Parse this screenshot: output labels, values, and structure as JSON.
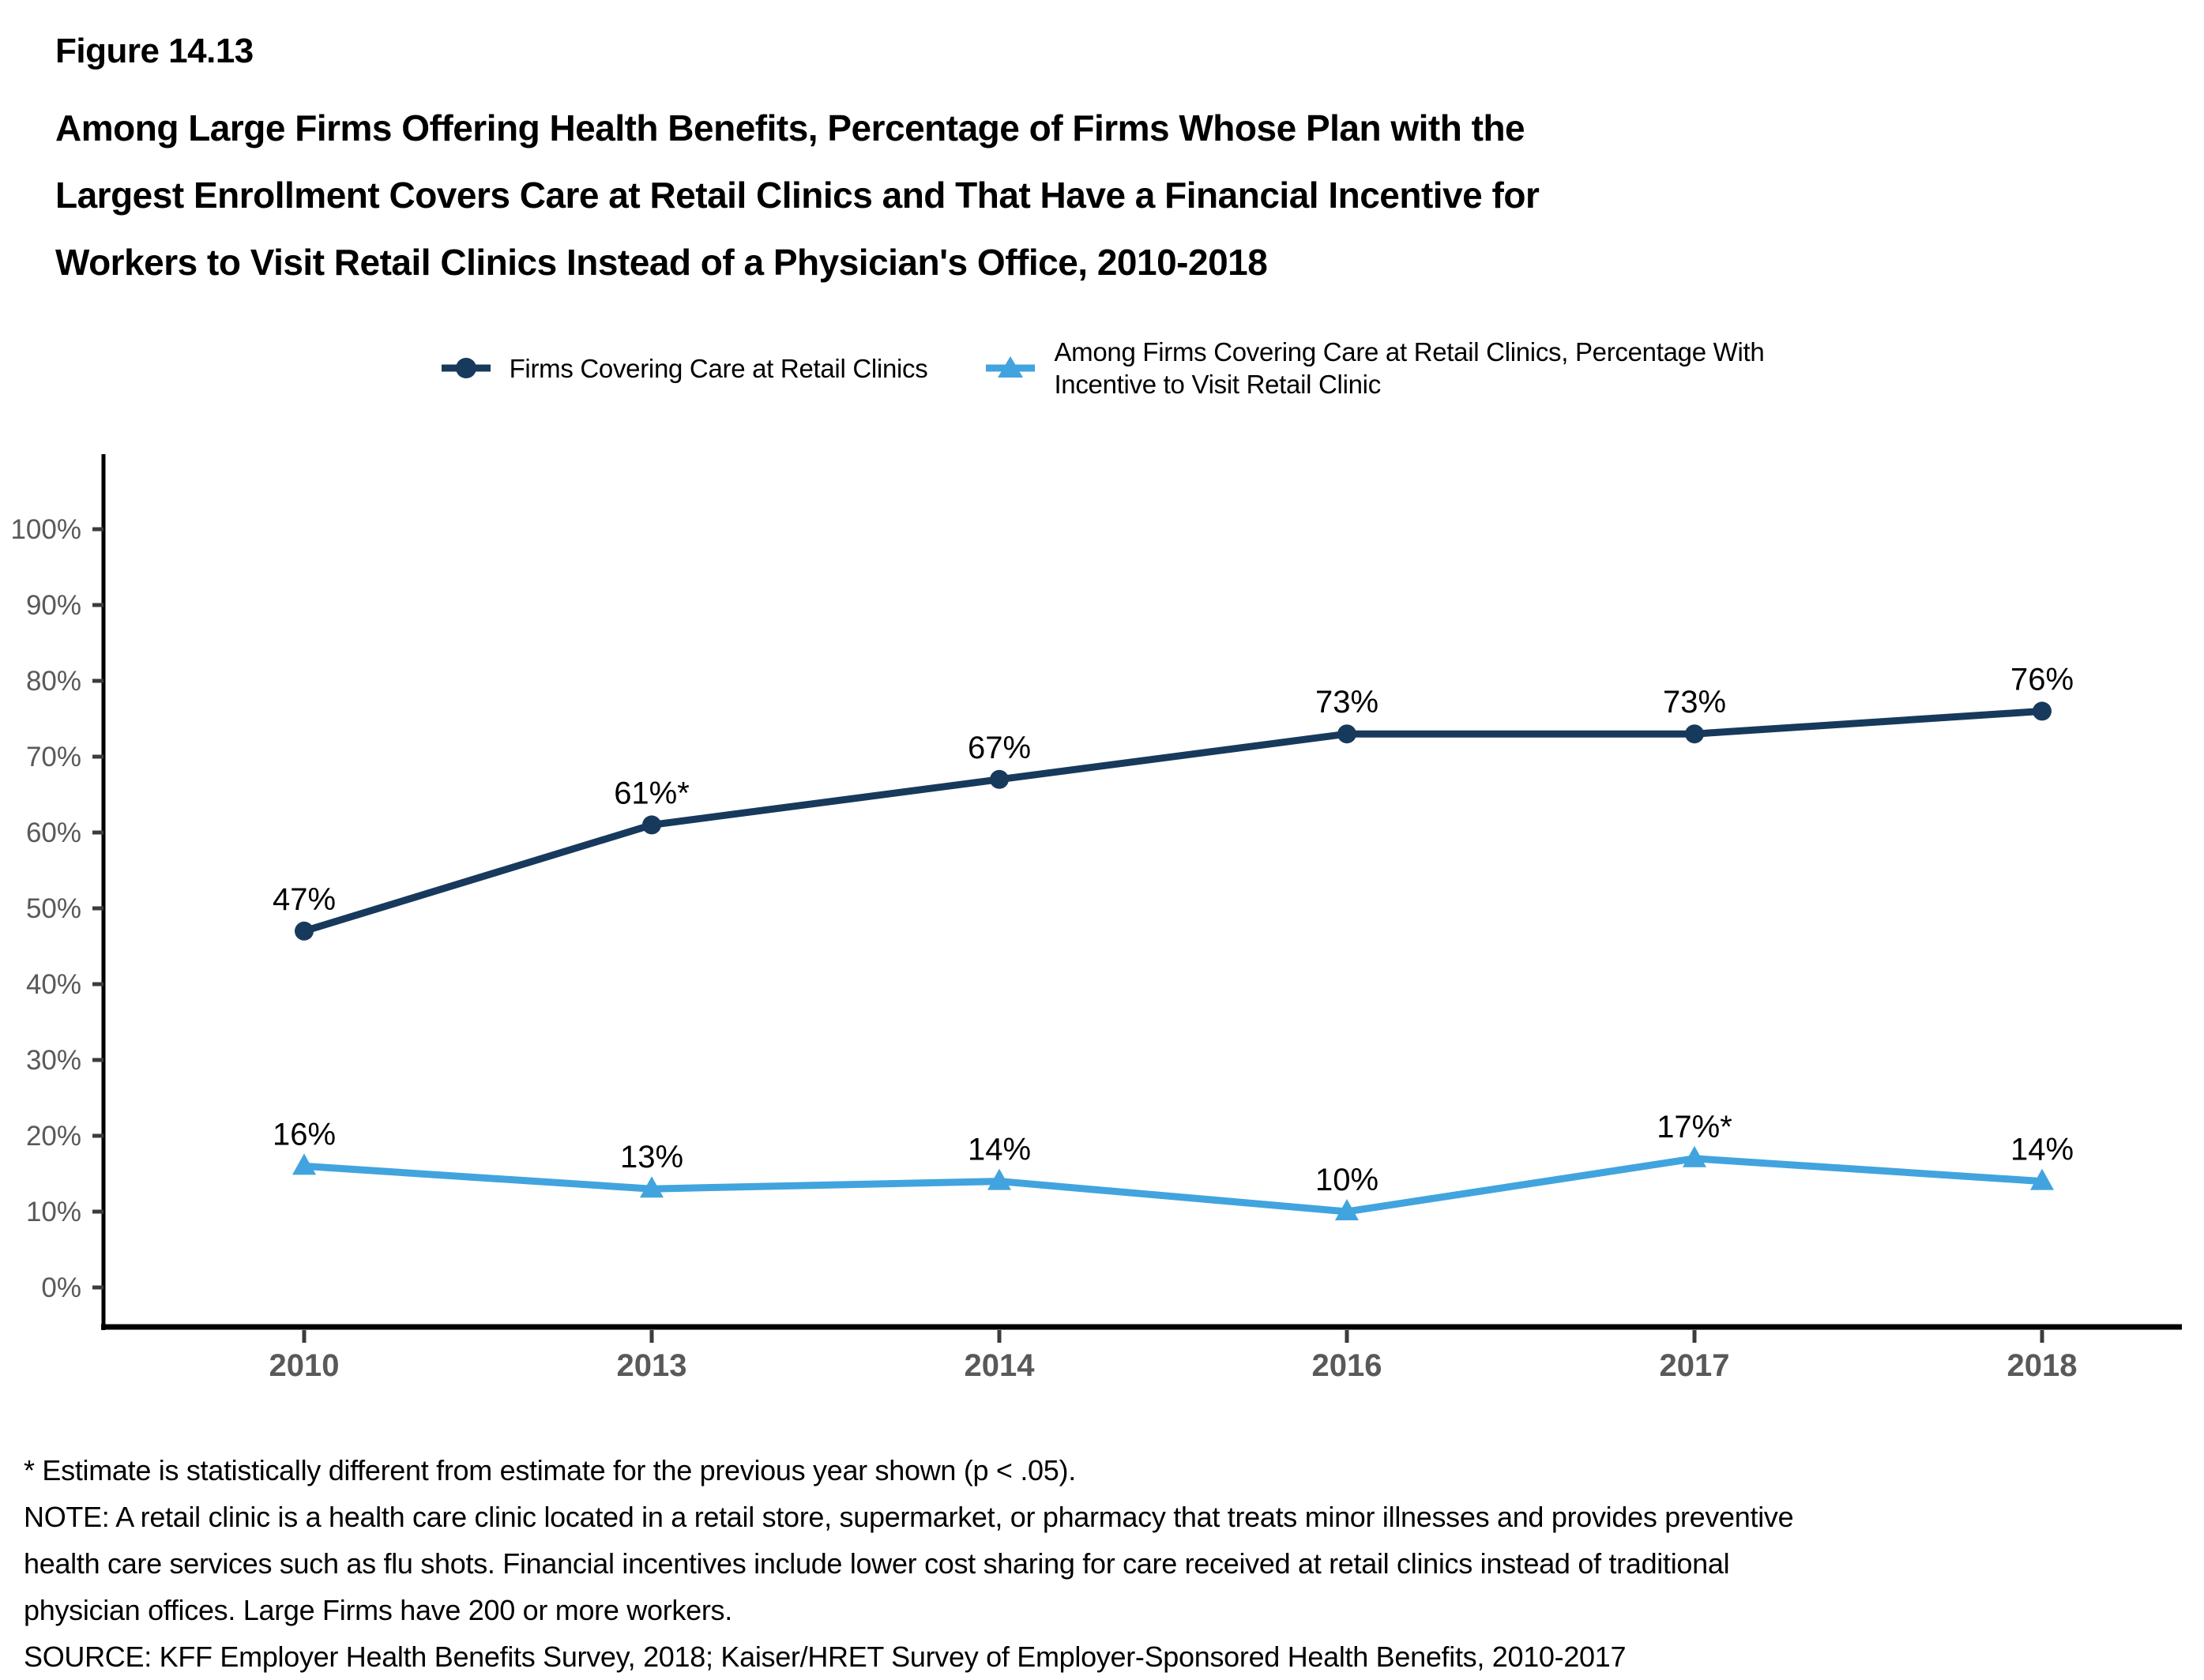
{
  "figure_label": "Figure 14.13",
  "title_lines": [
    "Among Large Firms Offering Health Benefits, Percentage of Firms Whose Plan with the",
    "Largest Enrollment Covers Care at Retail Clinics and That Have a Financial Incentive for",
    "Workers to Visit Retail Clinics Instead of a Physician's Office, 2010-2018"
  ],
  "legend": [
    {
      "label": "Firms Covering Care at Retail Clinics",
      "marker": "circle",
      "color": "#17395C"
    },
    {
      "label": "Among Firms Covering Care at Retail Clinics, Percentage With\nIncentive to Visit Retail Clinic",
      "marker": "triangle",
      "color": "#41A4DE"
    }
  ],
  "chart_data": {
    "type": "line",
    "title": "Among Large Firms Offering Health Benefits, Percentage of Firms Whose Plan with the Largest Enrollment Covers Care at Retail Clinics and That Have a Financial Incentive for Workers to Visit Retail Clinics Instead of a Physician's Office, 2010-2018",
    "categories": [
      "2010",
      "2013",
      "2014",
      "2016",
      "2017",
      "2018"
    ],
    "series": [
      {
        "name": "Firms Covering Care at Retail Clinics",
        "color": "#17395C",
        "marker": "circle",
        "values": [
          47,
          61,
          67,
          73,
          73,
          76
        ],
        "labels": [
          "47%",
          "61%*",
          "67%",
          "73%",
          "73%",
          "76%"
        ]
      },
      {
        "name": "Among Firms Covering Care at Retail Clinics, Percentage With Incentive to Visit Retail Clinic",
        "color": "#41A4DE",
        "marker": "triangle",
        "values": [
          16,
          13,
          14,
          10,
          17,
          14
        ],
        "labels": [
          "16%",
          "13%",
          "14%",
          "10%",
          "17%*",
          "14%"
        ]
      }
    ],
    "xlabel": "",
    "ylabel": "",
    "ylim": [
      0,
      100
    ],
    "y_ticks": [
      "0%",
      "10%",
      "20%",
      "30%",
      "40%",
      "50%",
      "60%",
      "70%",
      "80%",
      "90%",
      "100%"
    ],
    "grid": false,
    "legend_position": "top",
    "axis_color": "#000000",
    "tick_color": "#3c3c3c",
    "tick_label_color": "#595959",
    "data_label_color": "#000000"
  },
  "footnotes": [
    "* Estimate is statistically different from estimate for the previous year shown (p < .05).",
    "NOTE: A retail clinic is a health care clinic located in a retail store, supermarket, or pharmacy that treats minor illnesses and provides preventive",
    "health care services such as flu shots. Financial incentives include lower cost sharing for care received at retail clinics instead of traditional",
    "physician offices. Large Firms have 200 or more workers.",
    "SOURCE: KFF Employer Health Benefits Survey, 2018; Kaiser/HRET Survey of Employer-Sponsored Health Benefits, 2010-2017"
  ]
}
